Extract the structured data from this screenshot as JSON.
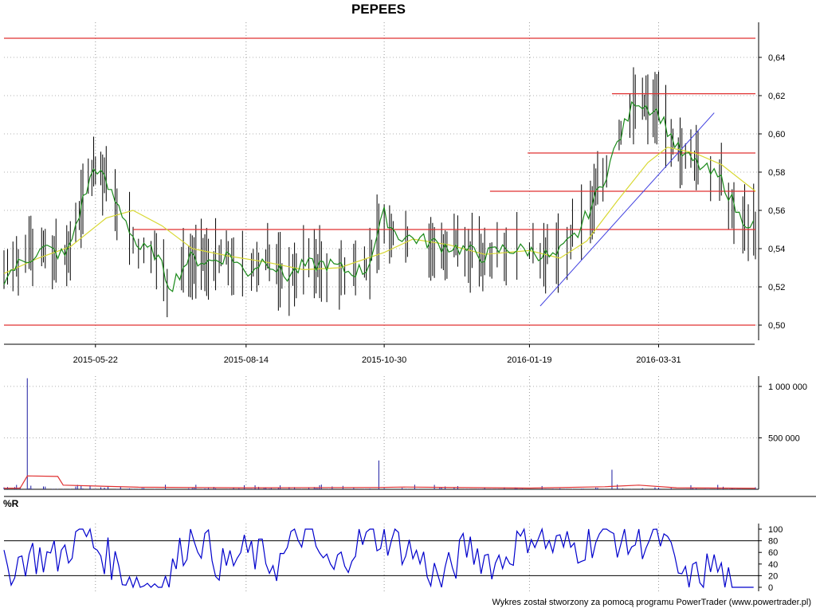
{
  "title": "PEPEES",
  "footer": "Wykres został stworzony za pomocą programu PowerTrader (www.powertrader.pl)",
  "chart_data": [
    {
      "type": "candlestick",
      "title": "PEPEES",
      "x_ticks": [
        "2015-05-22",
        "2015-08-14",
        "2015-10-30",
        "2016-01-19",
        "2016-03-31"
      ],
      "y_ticks": [
        "0,50",
        "0,52",
        "0,54",
        "0,56",
        "0,58",
        "0,60",
        "0,62",
        "0,64"
      ],
      "ylim": [
        0.49,
        0.65
      ],
      "date_range": [
        "2015-04-01",
        "2016-05-24"
      ],
      "grid": true,
      "series_colors": {
        "bars": "#000000",
        "ma_short": "#1a8a1a",
        "ma_long": "#d8d832",
        "levels": "#e03030",
        "trendline": "#4040e0"
      },
      "horizontal_levels": [
        {
          "y": 0.65,
          "from": "2015-04-01",
          "to": "2016-05-24"
        },
        {
          "y": 0.621,
          "from": "2016-03-05",
          "to": "2016-05-24"
        },
        {
          "y": 0.59,
          "from": "2016-01-18",
          "to": "2016-05-24"
        },
        {
          "y": 0.57,
          "from": "2015-12-28",
          "to": "2016-05-24"
        },
        {
          "y": 0.55,
          "from": "2015-06-12",
          "to": "2016-05-24"
        },
        {
          "y": 0.5,
          "from": "2015-04-01",
          "to": "2016-05-24"
        }
      ],
      "trendline": {
        "x": [
          "2016-01-25",
          "2016-05-01"
        ],
        "y": [
          0.51,
          0.611
        ]
      },
      "ma_short": {
        "x": [
          "2015-04-01",
          "2015-04-12",
          "2015-04-24",
          "2015-05-06",
          "2015-05-15",
          "2015-05-22",
          "2015-05-30",
          "2015-06-08",
          "2015-06-15",
          "2015-06-24",
          "2015-07-03",
          "2015-07-13",
          "2015-07-25",
          "2015-08-05",
          "2015-08-14",
          "2015-08-25",
          "2015-09-05",
          "2015-09-15",
          "2015-09-28",
          "2015-10-10",
          "2015-10-20",
          "2015-10-30",
          "2015-11-06",
          "2015-11-18",
          "2015-11-30",
          "2015-12-12",
          "2015-12-24",
          "2016-01-05",
          "2016-01-19",
          "2016-02-02",
          "2016-02-15",
          "2016-02-28",
          "2016-03-08",
          "2016-03-18",
          "2016-03-31",
          "2016-04-12",
          "2016-04-25",
          "2016-05-06",
          "2016-05-15",
          "2016-05-24"
        ],
        "y": [
          0.525,
          0.534,
          0.54,
          0.536,
          0.565,
          0.584,
          0.57,
          0.555,
          0.54,
          0.538,
          0.52,
          0.535,
          0.533,
          0.537,
          0.527,
          0.535,
          0.525,
          0.531,
          0.532,
          0.528,
          0.529,
          0.558,
          0.547,
          0.545,
          0.542,
          0.54,
          0.536,
          0.54,
          0.539,
          0.535,
          0.548,
          0.573,
          0.595,
          0.618,
          0.611,
          0.59,
          0.582,
          0.575,
          0.557,
          0.552
        ]
      },
      "ma_long": {
        "x": [
          "2015-04-01",
          "2015-04-20",
          "2015-05-08",
          "2015-05-28",
          "2015-06-12",
          "2015-06-28",
          "2015-07-15",
          "2015-08-05",
          "2015-08-25",
          "2015-09-15",
          "2015-10-05",
          "2015-10-30",
          "2015-11-15",
          "2015-12-05",
          "2015-12-25",
          "2016-01-19",
          "2016-02-05",
          "2016-02-20",
          "2016-03-08",
          "2016-03-25",
          "2016-04-05",
          "2016-04-20",
          "2016-05-05",
          "2016-05-24"
        ],
        "y": [
          0.527,
          0.535,
          0.541,
          0.556,
          0.56,
          0.552,
          0.54,
          0.536,
          0.533,
          0.529,
          0.53,
          0.538,
          0.545,
          0.542,
          0.537,
          0.539,
          0.535,
          0.544,
          0.565,
          0.585,
          0.593,
          0.59,
          0.584,
          0.57
        ]
      }
    },
    {
      "type": "bar",
      "title": "",
      "y_ticks": [
        "500 000",
        "1 000 000"
      ],
      "ylim": [
        0,
        1100000
      ],
      "grid": true,
      "volume_spikes": {
        "x": [
          "2015-04-14",
          "2015-10-27",
          "2016-03-05"
        ],
        "y": [
          1080000,
          280000,
          190000
        ]
      },
      "volume_ma": {
        "x": [
          "2015-04-01",
          "2015-04-10",
          "2015-04-14",
          "2015-05-01",
          "2015-05-04",
          "2015-06-15",
          "2015-08-14",
          "2015-10-27",
          "2015-11-10",
          "2016-01-19",
          "2016-03-01",
          "2016-03-20",
          "2016-04-10",
          "2016-05-24"
        ],
        "y": [
          10000,
          12000,
          130000,
          125000,
          40000,
          20000,
          15000,
          18000,
          22000,
          12000,
          25000,
          40000,
          15000,
          10000
        ]
      }
    },
    {
      "type": "line",
      "title": "%R",
      "y_ticks": [
        "0",
        "20",
        "40",
        "60",
        "80",
        "100"
      ],
      "ylim": [
        0,
        100
      ],
      "reference_lines": [
        20,
        80
      ],
      "series_color": "#0000cc",
      "sample": {
        "x": [
          "2015-04-01",
          "2015-04-15",
          "2015-05-01",
          "2015-05-15",
          "2015-05-22",
          "2015-06-15",
          "2015-07-01",
          "2015-07-15",
          "2015-08-01",
          "2015-08-14",
          "2015-09-01",
          "2015-09-15",
          "2015-10-01",
          "2015-10-15",
          "2015-10-30",
          "2015-11-15",
          "2015-12-01",
          "2015-12-15",
          "2016-01-01",
          "2016-01-19",
          "2016-02-01",
          "2016-02-15",
          "2016-03-01",
          "2016-03-15",
          "2016-03-31",
          "2016-04-15",
          "2016-05-01",
          "2016-05-10",
          "2016-05-24"
        ],
        "y": [
          30,
          55,
          50,
          95,
          70,
          5,
          10,
          100,
          35,
          60,
          40,
          100,
          25,
          80,
          90,
          60,
          10,
          70,
          40,
          95,
          70,
          70,
          95,
          75,
          90,
          5,
          40,
          0,
          0
        ]
      }
    }
  ]
}
